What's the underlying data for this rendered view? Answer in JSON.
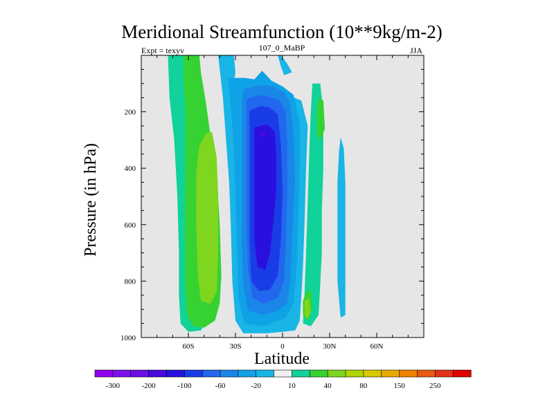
{
  "chart_data": {
    "type": "heatmap",
    "title": "Meridional Streamfunction (10**9kg/m-2)",
    "subtitle_left": "Expt = texyv",
    "subtitle_center": "107_0_MaBP",
    "subtitle_right": "JJA",
    "xlabel": "Latitude",
    "ylabel": "Pressure (in hPa)",
    "xlim": [
      -90,
      90
    ],
    "ylim": [
      1000,
      0
    ],
    "x_ticks": [
      {
        "value": -60,
        "label": "60S"
      },
      {
        "value": -30,
        "label": "30S"
      },
      {
        "value": 0,
        "label": "0"
      },
      {
        "value": 30,
        "label": "30N"
      },
      {
        "value": 60,
        "label": "60N"
      }
    ],
    "y_ticks": [
      {
        "value": 200,
        "label": "200"
      },
      {
        "value": 400,
        "label": "400"
      },
      {
        "value": 600,
        "label": "600"
      },
      {
        "value": 800,
        "label": "800"
      },
      {
        "value": 1000,
        "label": "1000"
      }
    ],
    "background_color": "#e6e6e6",
    "colorbar": {
      "levels": [
        -300,
        -250,
        -200,
        -150,
        -100,
        -80,
        -60,
        -40,
        -20,
        -10,
        10,
        20,
        40,
        60,
        80,
        100,
        150,
        200,
        250,
        300
      ],
      "shown_labels": [
        "-300",
        "-200",
        "-100",
        "-60",
        "-20",
        "10",
        "40",
        "80",
        "150",
        "250"
      ],
      "colors": [
        "#8f00ef",
        "#7d10ec",
        "#6a0fe6",
        "#4a08d9",
        "#2a10de",
        "#1a3ce6",
        "#2267ee",
        "#1a87e8",
        "#10a2e6",
        "#19b5e6",
        "#f0f0f0",
        "#10d29a",
        "#35d232",
        "#7ed61e",
        "#b2d400",
        "#d8c800",
        "#e9a800",
        "#ef8200",
        "#e75a10",
        "#e33218",
        "#e00000"
      ]
    },
    "regions": [
      {
        "level": 10,
        "color": "#10d29a",
        "points": [
          [
            -73,
            0
          ],
          [
            -63,
            0
          ],
          [
            -61,
            40
          ],
          [
            -59,
            100
          ],
          [
            -57,
            200
          ],
          [
            -53,
            320
          ],
          [
            -50,
            500
          ],
          [
            -48,
            700
          ],
          [
            -47,
            850
          ],
          [
            -48,
            940
          ],
          [
            -52,
            975
          ],
          [
            -60,
            980
          ],
          [
            -65,
            950
          ],
          [
            -66,
            850
          ],
          [
            -66,
            700
          ],
          [
            -67,
            500
          ],
          [
            -69,
            300
          ],
          [
            -72,
            150
          ]
        ]
      },
      {
        "level": 20,
        "color": "#35d232",
        "points": [
          [
            -63,
            0
          ],
          [
            -53,
            0
          ],
          [
            -52,
            60
          ],
          [
            -49,
            160
          ],
          [
            -46,
            280
          ],
          [
            -42,
            420
          ],
          [
            -40,
            600
          ],
          [
            -39,
            780
          ],
          [
            -40,
            880
          ],
          [
            -43,
            940
          ],
          [
            -50,
            965
          ],
          [
            -57,
            960
          ],
          [
            -61,
            920
          ],
          [
            -62,
            800
          ],
          [
            -62,
            600
          ],
          [
            -62,
            400
          ],
          [
            -62,
            200
          ],
          [
            -63,
            80
          ]
        ]
      },
      {
        "level": 40,
        "color": "#7ed61e",
        "points": [
          [
            -49,
            280
          ],
          [
            -45,
            270
          ],
          [
            -42,
            360
          ],
          [
            -41,
            500
          ],
          [
            -41,
            700
          ],
          [
            -42,
            840
          ],
          [
            -46,
            880
          ],
          [
            -52,
            870
          ],
          [
            -54,
            780
          ],
          [
            -55,
            600
          ],
          [
            -55,
            420
          ],
          [
            -53,
            320
          ]
        ]
      },
      {
        "level": 10,
        "color": "#10d29a",
        "points": [
          [
            19,
            100
          ],
          [
            24,
            100
          ],
          [
            26,
            200
          ],
          [
            26,
            400
          ],
          [
            25,
            550
          ],
          [
            25,
            700
          ],
          [
            23,
            920
          ],
          [
            18,
            960
          ],
          [
            13,
            950
          ],
          [
            14,
            850
          ],
          [
            15,
            700
          ],
          [
            16,
            520
          ],
          [
            17,
            350
          ],
          [
            18,
            200
          ]
        ]
      },
      {
        "level": 20,
        "color": "#35d232",
        "points": [
          [
            23,
            150
          ],
          [
            26,
            160
          ],
          [
            27,
            260
          ],
          [
            24,
            300
          ],
          [
            22,
            280
          ],
          [
            22,
            200
          ]
        ]
      },
      {
        "level": 20,
        "color": "#35d232",
        "points": [
          [
            15,
            840
          ],
          [
            18,
            830
          ],
          [
            19,
            900
          ],
          [
            16,
            940
          ],
          [
            13,
            920
          ],
          [
            13,
            870
          ]
        ]
      },
      {
        "level": 40,
        "color": "#7ed61e",
        "points": [
          [
            14,
            870
          ],
          [
            17,
            860
          ],
          [
            18,
            910
          ],
          [
            16,
            935
          ],
          [
            14,
            920
          ]
        ]
      },
      {
        "level": -10,
        "color": "#19b5e6",
        "points": [
          [
            37,
            290
          ],
          [
            39,
            330
          ],
          [
            40,
            450
          ],
          [
            40,
            620
          ],
          [
            40,
            800
          ],
          [
            40,
            920
          ],
          [
            37,
            930
          ],
          [
            35,
            800
          ],
          [
            35,
            600
          ],
          [
            35,
            450
          ],
          [
            36,
            340
          ]
        ]
      },
      {
        "level": -10,
        "color": "#19b5e6",
        "points": [
          [
            -41,
            0
          ],
          [
            -31,
            0
          ],
          [
            -30,
            60
          ],
          [
            -32,
            130
          ],
          [
            -20,
            140
          ],
          [
            -12,
            115
          ],
          [
            -6,
            140
          ],
          [
            3,
            140
          ],
          [
            12,
            160
          ],
          [
            16,
            250
          ],
          [
            15,
            400
          ],
          [
            14,
            600
          ],
          [
            13,
            750
          ],
          [
            12,
            850
          ],
          [
            11,
            940
          ],
          [
            8,
            975
          ],
          [
            0,
            980
          ],
          [
            -10,
            985
          ],
          [
            -25,
            985
          ],
          [
            -30,
            940
          ],
          [
            -32,
            800
          ],
          [
            -33,
            600
          ],
          [
            -34,
            450
          ],
          [
            -36,
            300
          ],
          [
            -38,
            150
          ]
        ]
      },
      {
        "level": -10,
        "color": "#19b5e6",
        "points": [
          [
            -3,
            0
          ],
          [
            -1,
            0
          ],
          [
            3,
            30
          ],
          [
            6,
            60
          ],
          [
            1,
            70
          ],
          [
            -1,
            40
          ]
        ]
      },
      {
        "level": -20,
        "color": "#10a2e6",
        "points": [
          [
            -35,
            80
          ],
          [
            -24,
            80
          ],
          [
            -18,
            85
          ],
          [
            -13,
            55
          ],
          [
            -7,
            90
          ],
          [
            0,
            110
          ],
          [
            7,
            140
          ],
          [
            11,
            240
          ],
          [
            11,
            400
          ],
          [
            10,
            600
          ],
          [
            9,
            750
          ],
          [
            7,
            880
          ],
          [
            2,
            930
          ],
          [
            -12,
            960
          ],
          [
            -24,
            950
          ],
          [
            -28,
            870
          ],
          [
            -29,
            700
          ],
          [
            -30,
            500
          ],
          [
            -31,
            330
          ],
          [
            -33,
            180
          ]
        ]
      },
      {
        "level": -40,
        "color": "#1a87e8",
        "points": [
          [
            -25,
            120
          ],
          [
            -17,
            108
          ],
          [
            -11,
            105
          ],
          [
            -5,
            112
          ],
          [
            1,
            130
          ],
          [
            5,
            170
          ],
          [
            7,
            280
          ],
          [
            8,
            450
          ],
          [
            6,
            650
          ],
          [
            5,
            800
          ],
          [
            3,
            880
          ],
          [
            -3,
            905
          ],
          [
            -12,
            920
          ],
          [
            -22,
            905
          ],
          [
            -25,
            820
          ],
          [
            -26,
            650
          ],
          [
            -26,
            450
          ],
          [
            -26,
            280
          ],
          [
            -26,
            170
          ]
        ]
      },
      {
        "level": -60,
        "color": "#2267ee",
        "points": [
          [
            -23,
            155
          ],
          [
            -14,
            140
          ],
          [
            -8,
            148
          ],
          [
            -2,
            160
          ],
          [
            2,
            200
          ],
          [
            3,
            320
          ],
          [
            3,
            500
          ],
          [
            2,
            680
          ],
          [
            1,
            800
          ],
          [
            -3,
            860
          ],
          [
            -12,
            880
          ],
          [
            -19,
            860
          ],
          [
            -22,
            760
          ],
          [
            -23,
            580
          ],
          [
            -23,
            400
          ],
          [
            -23,
            250
          ]
        ]
      },
      {
        "level": -80,
        "color": "#1a3ce6",
        "points": [
          [
            -21,
            195
          ],
          [
            -14,
            180
          ],
          [
            -8,
            185
          ],
          [
            -3,
            210
          ],
          [
            -1,
            320
          ],
          [
            0,
            480
          ],
          [
            -1,
            650
          ],
          [
            -3,
            780
          ],
          [
            -8,
            830
          ],
          [
            -15,
            835
          ],
          [
            -20,
            800
          ],
          [
            -21,
            650
          ],
          [
            -21,
            470
          ],
          [
            -21,
            300
          ]
        ]
      },
      {
        "level": -100,
        "color": "#2a10de",
        "points": [
          [
            -18,
            255
          ],
          [
            -10,
            245
          ],
          [
            -5,
            270
          ],
          [
            -4,
            350
          ],
          [
            -4,
            480
          ],
          [
            -6,
            600
          ],
          [
            -8,
            700
          ],
          [
            -11,
            760
          ],
          [
            -16,
            750
          ],
          [
            -18,
            650
          ],
          [
            -18,
            500
          ],
          [
            -18,
            370
          ]
        ]
      },
      {
        "level": -150,
        "color": "#4a08d9",
        "points": [
          [
            -14,
            270
          ],
          [
            -12,
            265
          ],
          [
            -11,
            280
          ],
          [
            -13,
            290
          ],
          [
            -15,
            282
          ]
        ]
      }
    ]
  }
}
